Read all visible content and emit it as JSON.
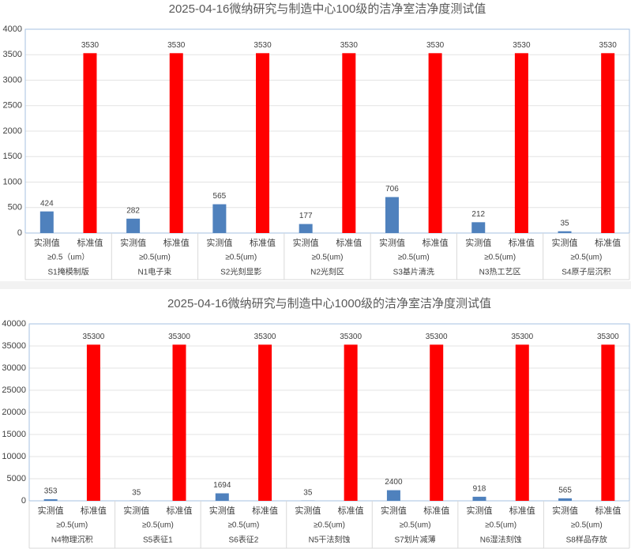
{
  "chart_data": [
    {
      "type": "bar",
      "title": "2025-04-16微纳研究与制造中心100级的洁净室洁净度测试值",
      "categories": [
        "S1掩模制版",
        "N1电子束",
        "S2光刻显影",
        "N2光刻区",
        "S3基片清洗",
        "N3热工艺区",
        "S4原子层沉积"
      ],
      "condition_labels": [
        "≥0.5（um）",
        "≥0.5(um)",
        "≥0.5(um)",
        "≥0.5(um)",
        "≥0.5(um)",
        "≥0.5(um)",
        "≥0.5(um)"
      ],
      "series": [
        {
          "name": "实测值",
          "color": "#4f81bd",
          "values": [
            424,
            282,
            565,
            177,
            706,
            212,
            35
          ]
        },
        {
          "name": "标准值",
          "color": "#ff0000",
          "values": [
            3530,
            3530,
            3530,
            3530,
            3530,
            3530,
            3530
          ]
        }
      ],
      "ylim": [
        0,
        4000
      ],
      "yticks": [
        0,
        500,
        1000,
        1500,
        2000,
        2500,
        3000,
        3500,
        4000
      ],
      "grid": true
    },
    {
      "type": "bar",
      "title": "2025-04-16微纳研究与制造中心1000级的洁净室洁净度测试值",
      "categories": [
        "N4物理沉积",
        "S5表征1",
        "S6表征2",
        "N5干法刻蚀",
        "S7划片减薄",
        "N6湿法刻蚀",
        "S8样品存放"
      ],
      "condition_labels": [
        "≥0.5(um)",
        "≥0.5(um)",
        "≥0.5(um)",
        "≥0.5(um)",
        "≥0.5(um)",
        "≥0.5(um)",
        "≥0.5(um)"
      ],
      "series": [
        {
          "name": "实测值",
          "color": "#4f81bd",
          "values": [
            353,
            35,
            1694,
            35,
            2400,
            918,
            565
          ]
        },
        {
          "name": "标准值",
          "color": "#ff0000",
          "values": [
            35300,
            35300,
            35300,
            35300,
            35300,
            35300,
            35300
          ]
        }
      ],
      "ylim": [
        0,
        40000
      ],
      "yticks": [
        0,
        5000,
        10000,
        15000,
        20000,
        25000,
        30000,
        35000,
        40000
      ],
      "grid": true
    }
  ]
}
